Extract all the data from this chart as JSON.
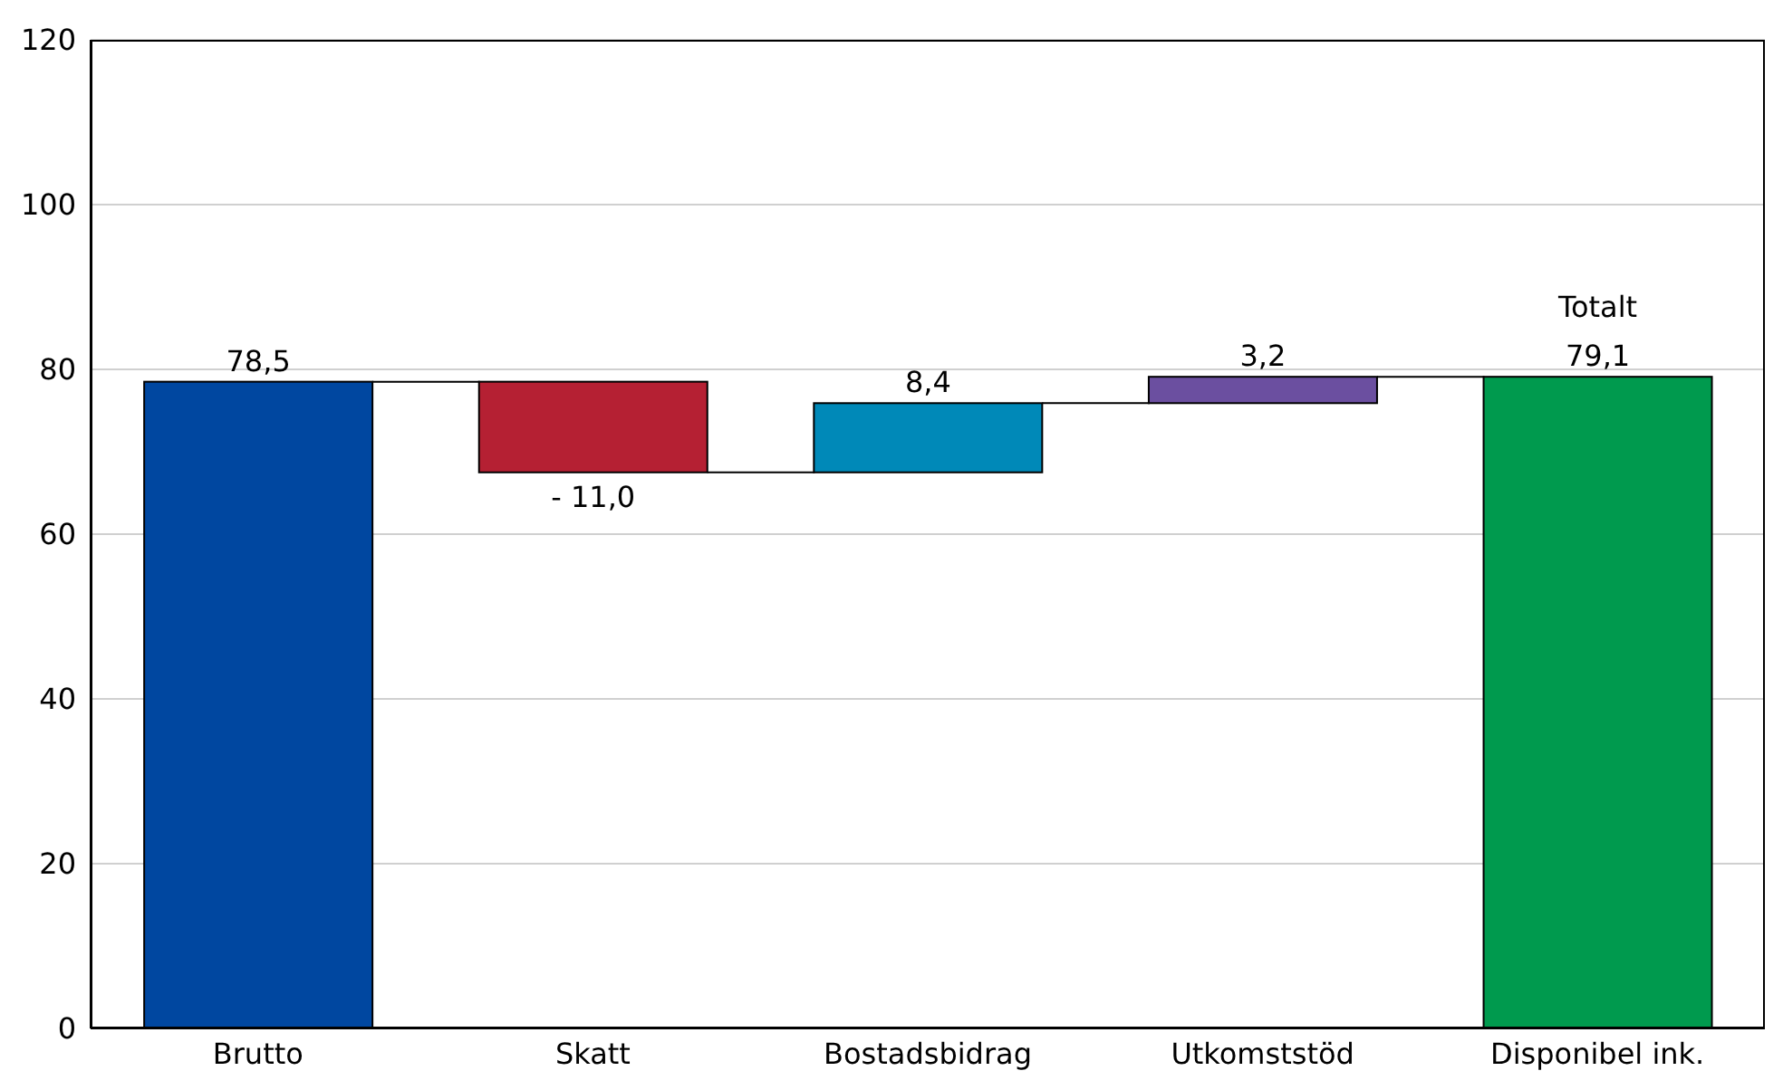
{
  "chart_data": {
    "type": "bar",
    "categories": [
      "Brutto",
      "Skatt",
      "Bostadsbidrag",
      "Utkomststöd",
      "Disponibel ink."
    ],
    "values": [
      78.5,
      -11.0,
      8.4,
      3.2,
      79.1
    ],
    "base": [
      0,
      78.5,
      67.5,
      75.9,
      0
    ],
    "colors": [
      "#0047a0",
      "#b52033",
      "#0089b8",
      "#6b4fa0",
      "#009a4e"
    ],
    "value_labels": [
      "78,5",
      "- 11,0",
      "8,4",
      "3,2",
      "79,1"
    ],
    "annotations": [
      {
        "text": "Totalt",
        "x": "Disponibel ink.",
        "y": 79.1
      }
    ],
    "ylim": [
      0,
      120
    ],
    "yticks": [
      0,
      20,
      40,
      60,
      80,
      100,
      120
    ],
    "grid": "y"
  }
}
